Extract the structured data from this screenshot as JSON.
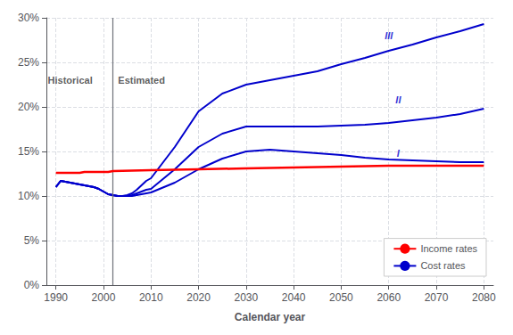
{
  "chart_data": {
    "type": "line",
    "xlabel": "Calendar year",
    "xlim": [
      1988,
      2082
    ],
    "xticks": [
      1990,
      2000,
      2010,
      2020,
      2030,
      2040,
      2050,
      2060,
      2070,
      2080
    ],
    "ylim": [
      0,
      30
    ],
    "yticks": [
      {
        "value": 0,
        "label": "0%"
      },
      {
        "value": 5,
        "label": "5%"
      },
      {
        "value": 10,
        "label": "10%"
      },
      {
        "value": 15,
        "label": "15%"
      },
      {
        "value": 20,
        "label": "20%"
      },
      {
        "value": 25,
        "label": "25%"
      },
      {
        "value": 30,
        "label": "30%"
      }
    ],
    "grid": true,
    "legend": "lower right",
    "vline": 2002,
    "series": [
      {
        "name": "Income rates",
        "color": "#FF0000",
        "x": [
          1990,
          1991,
          1992,
          1993,
          1994,
          1995,
          1996,
          1997,
          1998,
          1999,
          2000,
          2001,
          2002,
          2010,
          2020,
          2030,
          2040,
          2050,
          2060,
          2070,
          2080
        ],
        "values": [
          12.6,
          12.6,
          12.6,
          12.6,
          12.6,
          12.6,
          12.7,
          12.7,
          12.7,
          12.7,
          12.7,
          12.7,
          12.8,
          12.9,
          13.0,
          13.1,
          13.2,
          13.3,
          13.4,
          13.4,
          13.4
        ]
      },
      {
        "name": "Cost rates",
        "color": "#0000CC",
        "x": [
          1990,
          1991,
          1992,
          1993,
          1994,
          1995,
          1996,
          1997,
          1998,
          1999,
          2000,
          2001,
          2002,
          2003,
          2004,
          2005,
          2006,
          2007,
          2008,
          2009,
          2010,
          2015,
          2020,
          2025,
          2030,
          2035,
          2040,
          2045,
          2050,
          2055,
          2060,
          2065,
          2070,
          2075,
          2080
        ],
        "values": [
          11.0,
          11.7,
          11.6,
          11.5,
          11.4,
          11.3,
          11.2,
          11.1,
          11.0,
          10.8,
          10.5,
          10.2,
          10.1,
          10.0,
          10.0,
          10.0,
          10.0,
          10.1,
          10.2,
          10.3,
          10.4,
          11.5,
          13.0,
          14.2,
          15.0,
          15.2,
          15.0,
          14.8,
          14.6,
          14.3,
          14.1,
          14.0,
          13.9,
          13.8,
          13.8
        ]
      },
      {
        "name": "Cost rates",
        "color": "#0000CC",
        "x": [
          1990,
          1991,
          1992,
          1993,
          1994,
          1995,
          1996,
          1997,
          1998,
          1999,
          2000,
          2001,
          2002,
          2003,
          2004,
          2005,
          2006,
          2007,
          2008,
          2009,
          2010,
          2015,
          2020,
          2025,
          2030,
          2035,
          2040,
          2045,
          2050,
          2055,
          2060,
          2065,
          2070,
          2075,
          2080
        ],
        "values": [
          11.0,
          11.7,
          11.6,
          11.5,
          11.4,
          11.3,
          11.2,
          11.1,
          11.0,
          10.8,
          10.5,
          10.2,
          10.1,
          10.0,
          10.0,
          10.0,
          10.1,
          10.3,
          10.5,
          10.7,
          10.8,
          13.0,
          15.5,
          17.0,
          17.8,
          17.8,
          17.8,
          17.8,
          17.9,
          18.0,
          18.2,
          18.5,
          18.8,
          19.2,
          19.8
        ]
      },
      {
        "name": "Cost rates",
        "color": "#0000CC",
        "x": [
          1990,
          1991,
          1992,
          1993,
          1994,
          1995,
          1996,
          1997,
          1998,
          1999,
          2000,
          2001,
          2002,
          2003,
          2004,
          2005,
          2006,
          2007,
          2008,
          2009,
          2010,
          2015,
          2020,
          2025,
          2030,
          2035,
          2040,
          2045,
          2050,
          2055,
          2060,
          2065,
          2070,
          2075,
          2080
        ],
        "values": [
          11.0,
          11.7,
          11.6,
          11.5,
          11.4,
          11.3,
          11.2,
          11.1,
          11.0,
          10.8,
          10.5,
          10.2,
          10.1,
          10.0,
          10.0,
          10.1,
          10.3,
          10.7,
          11.2,
          11.7,
          12.0,
          15.5,
          19.5,
          21.5,
          22.5,
          23.0,
          23.5,
          24.0,
          24.8,
          25.5,
          26.3,
          27.0,
          27.8,
          28.5,
          29.3
        ]
      }
    ],
    "annotations": [
      {
        "text": "I",
        "x": 2062,
        "y": 14.3,
        "color": "#0000CC"
      },
      {
        "text": "II",
        "x": 2062,
        "y": 20.3,
        "color": "#0000CC"
      },
      {
        "text": "III",
        "x": 2060,
        "y": 27.5,
        "color": "#0000CC"
      },
      {
        "text": "Historical",
        "x": 1993,
        "y": 22.5
      },
      {
        "text": "Estimated",
        "x": 2008,
        "y": 22.5
      }
    ]
  }
}
